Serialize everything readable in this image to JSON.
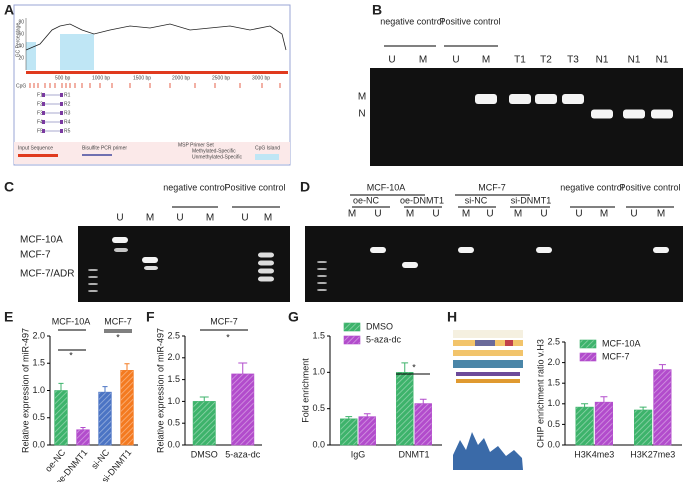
{
  "panel_letters": [
    "A",
    "B",
    "C",
    "D",
    "E",
    "F",
    "G",
    "H"
  ],
  "panel_a": {
    "y_label": "GC Percentage",
    "y_ticks": [
      "80",
      "60",
      "40",
      "20"
    ],
    "ruler": [
      "500 bp",
      "1000 bp",
      "1500 bp",
      "2000 bp",
      "2500 bp",
      "3000 bp"
    ],
    "cpg": "CpG",
    "primers": [
      [
        "F1",
        "R1"
      ],
      [
        "F2",
        "R2"
      ],
      [
        "F3",
        "R3"
      ],
      [
        "F4",
        "R4"
      ],
      [
        "F5",
        "R5"
      ]
    ],
    "legend": [
      "Input Sequence",
      "Bisulfite PCR primer",
      "MSP Primer Set",
      "Methylated-Specific",
      "Unmethylated-Specific",
      "CpG Island"
    ]
  },
  "panel_b": {
    "groups": [
      "negative control",
      "Positive control"
    ],
    "lanes": [
      "U",
      "M",
      "U",
      "M",
      "T1",
      "T2",
      "T3",
      "N1",
      "N1",
      "N1"
    ],
    "bands": [
      "M",
      "N"
    ]
  },
  "panel_c": {
    "groups": [
      "negative control",
      "Positive control"
    ],
    "lanes": [
      "U",
      "M",
      "U",
      "M",
      "U",
      "M"
    ],
    "rows": [
      "MCF-10A",
      "MCF-7",
      "MCF-7/ADR"
    ]
  },
  "panel_d": {
    "cells": [
      "MCF-10A",
      "MCF-7"
    ],
    "subgroups": [
      "oe-NC",
      "oe-DNMT1",
      "si-NC",
      "si-DNMT1"
    ],
    "groups": [
      "negative control",
      "Positive control"
    ],
    "lanes": [
      "M",
      "U",
      "M",
      "U",
      "M",
      "U",
      "M",
      "U",
      "U",
      "M",
      "U",
      "M"
    ]
  },
  "chart_data": [
    {
      "type": "bar",
      "y_label": "Relative expression of miR-497",
      "categories": [
        "oe-NC",
        "oe-DNMT1",
        "si-NC",
        "si-DNMT1"
      ],
      "values": [
        1.0,
        0.28,
        0.97,
        1.37
      ],
      "errors": [
        0.13,
        0.04,
        0.1,
        0.12
      ],
      "colors": [
        "#3db36b",
        "#b24ccc",
        "#4b74c4",
        "#f47a20"
      ],
      "ylim": [
        0,
        2
      ],
      "yticks": [
        {
          "value": 0,
          "label": "0.0"
        },
        0.5,
        {
          "value": 1,
          "label": "1.0"
        },
        1.5,
        {
          "value": 2,
          "label": "2.0"
        }
      ],
      "annotations": [
        "MCF-10A",
        "MCF-7",
        "*",
        "*"
      ]
    },
    {
      "type": "bar",
      "y_label": "Relative expression of miR-497",
      "categories": [
        "DMSO",
        "5-aza-dc"
      ],
      "values": [
        1.0,
        1.63
      ],
      "errors": [
        0.1,
        0.25
      ],
      "colors": [
        "#3db36b",
        "#b24ccc"
      ],
      "ylim": [
        0,
        2.5
      ],
      "yticks": [
        {
          "value": 0,
          "label": "0.0"
        },
        0.5,
        {
          "value": 1,
          "label": "1.0"
        },
        1.5,
        {
          "value": 2,
          "label": "2.0"
        },
        2.5
      ],
      "annotations": [
        "MCF-7",
        "*"
      ]
    },
    {
      "type": "bar",
      "y_label": "Fold enrichment",
      "categories": [
        "IgG",
        "DNMT1"
      ],
      "series": [
        {
          "name": "DMSO",
          "color": "#3db36b",
          "values": [
            0.36,
            1.0
          ],
          "errors": [
            0.03,
            0.13
          ]
        },
        {
          "name": "5-aza-dc",
          "color": "#b24ccc",
          "values": [
            0.39,
            0.57
          ],
          "errors": [
            0.04,
            0.06
          ]
        }
      ],
      "ylim": [
        0,
        1.5
      ],
      "yticks": [
        {
          "value": 0,
          "label": "0.0"
        },
        0.5,
        {
          "value": 1,
          "label": "1.0"
        },
        1.5
      ],
      "annotations": [
        "*"
      ]
    },
    {
      "type": "bar",
      "y_label": "CHIP enrichment ratio v.H3",
      "categories": [
        "H3K4me3",
        "H3K27me3"
      ],
      "series": [
        {
          "name": "MCF-10A",
          "color": "#3db36b",
          "values": [
            0.92,
            0.85
          ],
          "errors": [
            0.08,
            0.07
          ]
        },
        {
          "name": "MCF-7",
          "color": "#b24ccc",
          "values": [
            1.04,
            1.83
          ],
          "errors": [
            0.13,
            0.12
          ]
        }
      ],
      "ylim": [
        0,
        2.5
      ],
      "yticks": [
        {
          "value": 0,
          "label": "0.0"
        },
        0.5,
        {
          "value": 1,
          "label": "1.0"
        },
        1.5,
        {
          "value": 2,
          "label": "2.0"
        },
        2.5
      ],
      "annotations": []
    }
  ]
}
